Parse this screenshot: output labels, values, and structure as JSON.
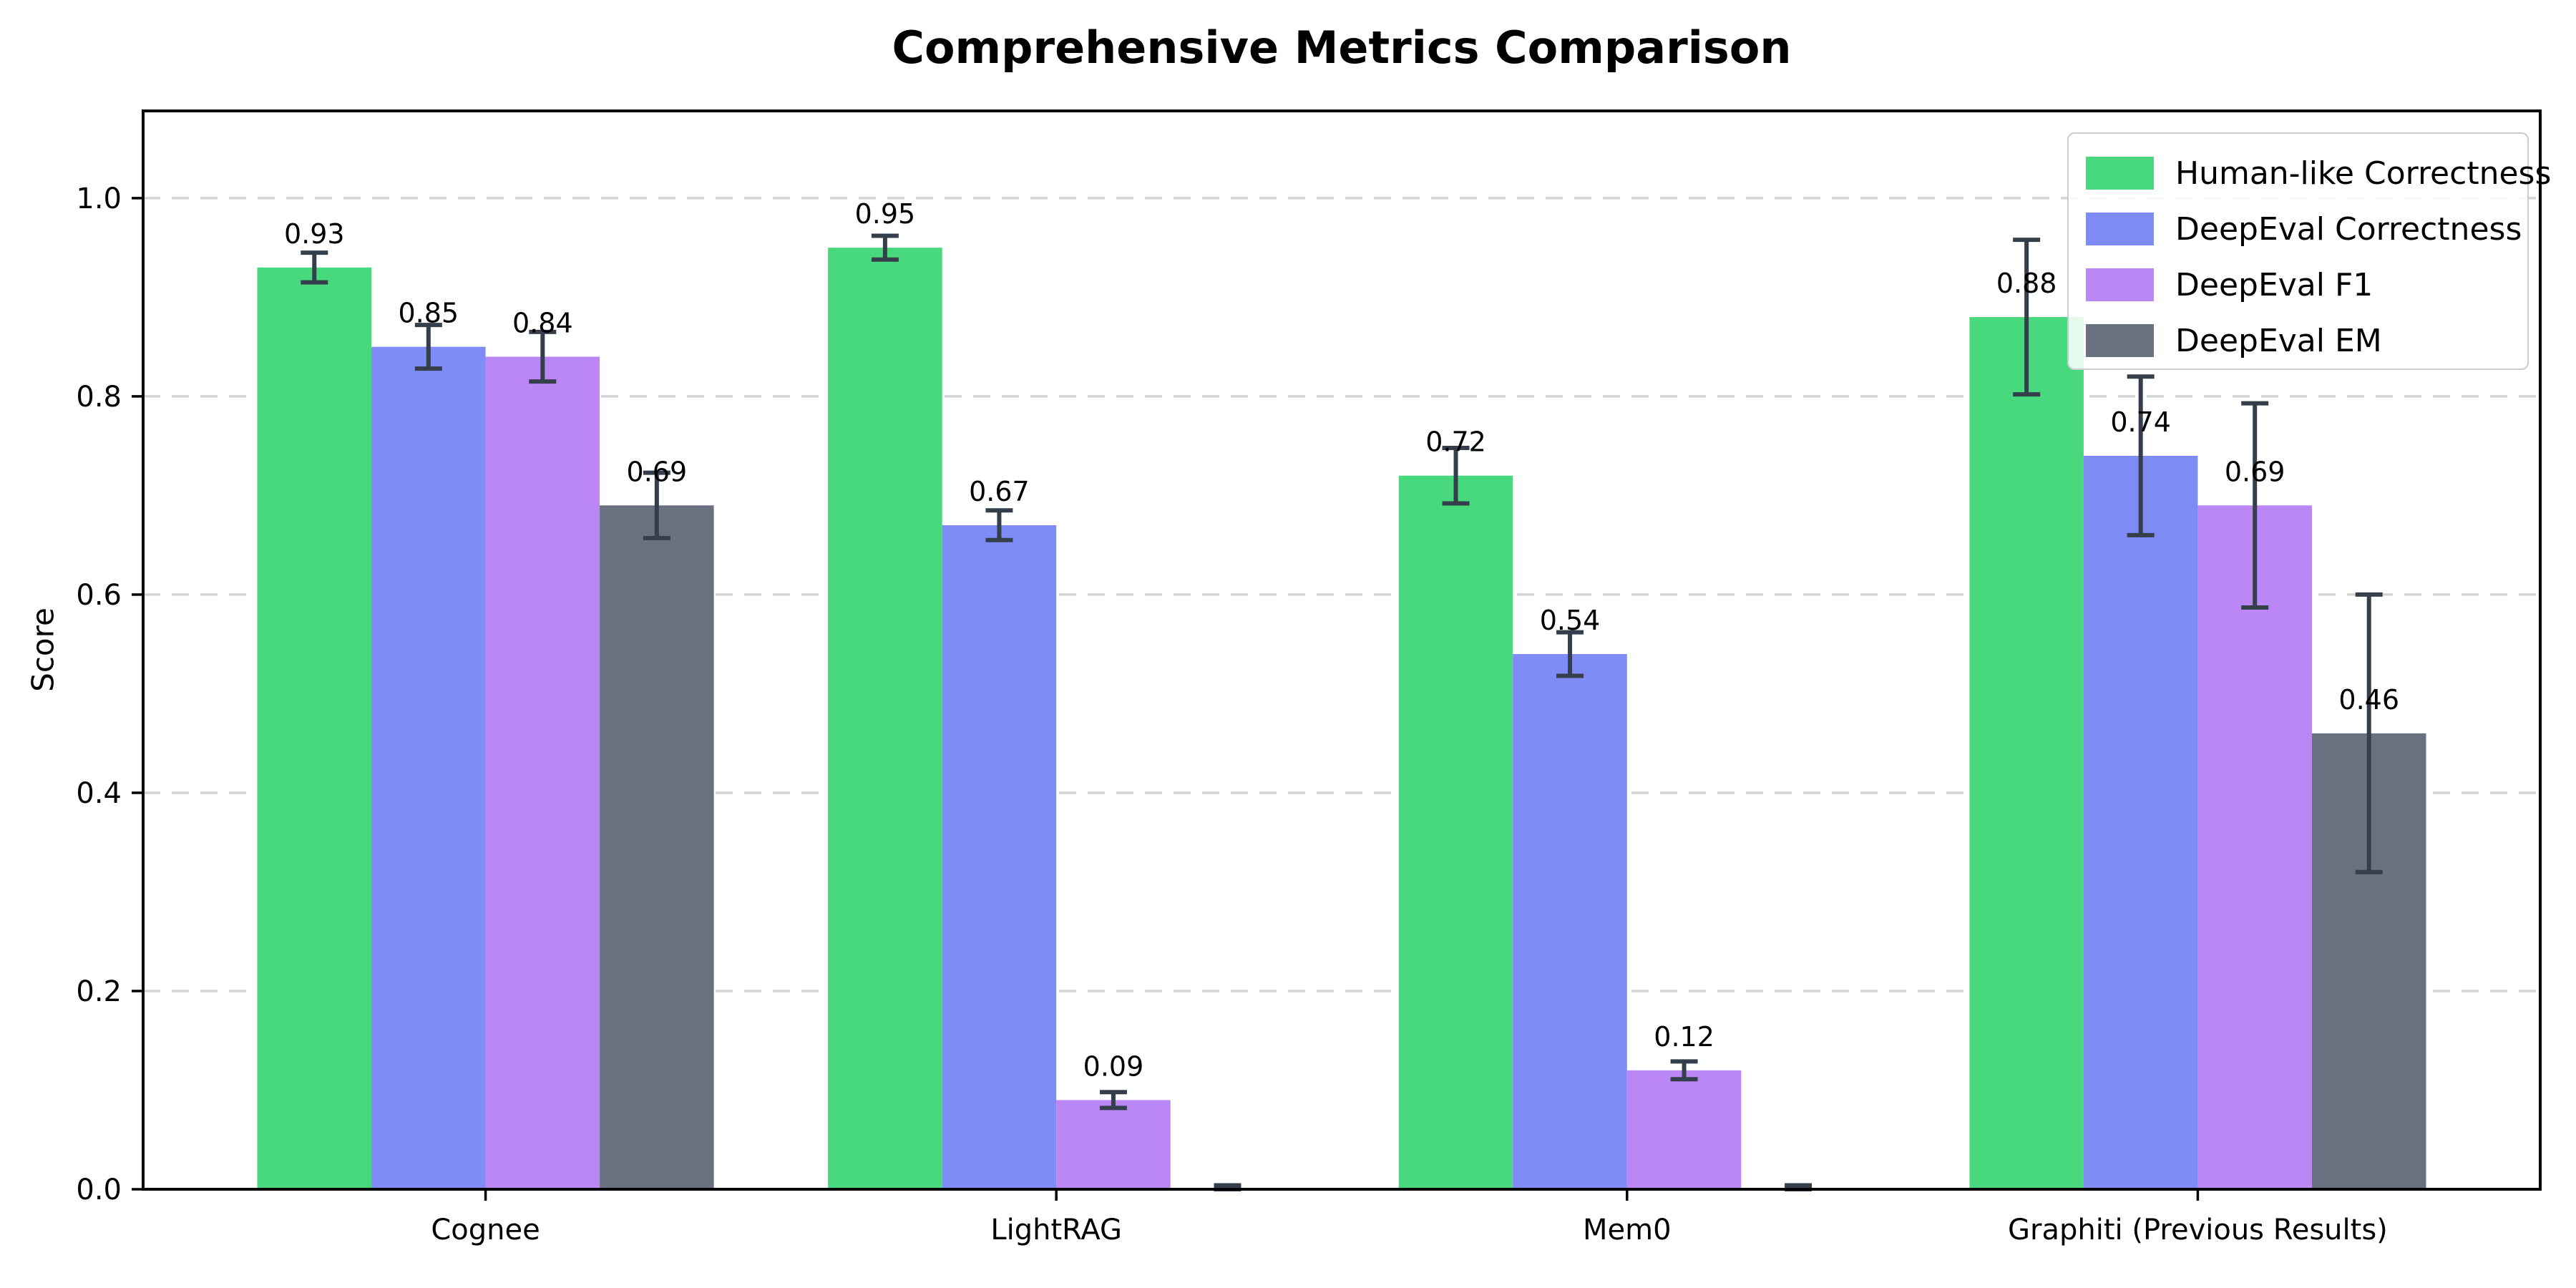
{
  "chart_data": {
    "type": "bar",
    "title": "Comprehensive Metrics Comparison",
    "ylabel": "Score",
    "xlabel": "",
    "categories": [
      "Cognee",
      "LightRAG",
      "Mem0",
      "Graphiti (Previous Results)"
    ],
    "series": [
      {
        "name": "Human-like Correctness",
        "color": "#48d97e",
        "values": [
          0.93,
          0.95,
          0.72,
          0.88
        ],
        "errors": [
          0.015,
          0.012,
          0.028,
          0.078
        ],
        "labels": [
          "0.93",
          "0.95",
          "0.72",
          "0.88"
        ]
      },
      {
        "name": "DeepEval Correctness",
        "color": "#7f8cf5",
        "values": [
          0.85,
          0.67,
          0.54,
          0.74
        ],
        "errors": [
          0.022,
          0.015,
          0.022,
          0.08
        ],
        "labels": [
          "0.85",
          "0.67",
          "0.54",
          "0.74"
        ]
      },
      {
        "name": "DeepEval F1",
        "color": "#bb87f4",
        "values": [
          0.84,
          0.09,
          0.12,
          0.69
        ],
        "errors": [
          0.025,
          0.008,
          0.009,
          0.103
        ],
        "labels": [
          "0.84",
          "0.09",
          "0.12",
          "0.69"
        ]
      },
      {
        "name": "DeepEval EM",
        "color": "#69707f",
        "values": [
          0.69,
          0.0,
          0.0,
          0.46
        ],
        "errors": [
          0.033,
          0.004,
          0.004,
          0.14
        ],
        "labels": [
          "0.69",
          "",
          "",
          "0.46"
        ]
      }
    ],
    "yticks": [
      0.0,
      0.2,
      0.4,
      0.6,
      0.8,
      1.0
    ],
    "ytick_labels": [
      "0.0",
      "0.2",
      "0.4",
      "0.6",
      "0.8",
      "1.0"
    ],
    "ylim": [
      0,
      1.088
    ],
    "grid": "horizontal-dashed",
    "grid_color": "#d4d4d4",
    "errorbar_color": "#343f4b",
    "axis_color": "#000000",
    "legend_position": "upper right",
    "background": "#ffffff"
  }
}
